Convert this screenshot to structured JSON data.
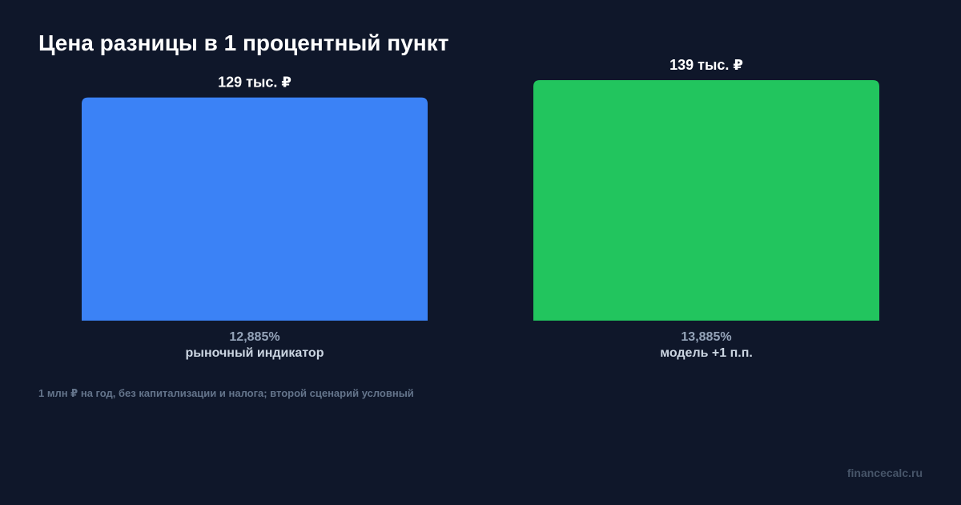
{
  "chart_data": {
    "type": "bar",
    "title": "Цена разницы в 1 процентный пункт",
    "categories": [
      "рыночный индикатор",
      "модель +1 п.п."
    ],
    "rates": [
      "12,885%",
      "13,885%"
    ],
    "values": [
      129,
      139
    ],
    "value_labels": [
      "129 тыс. ₽",
      "139 тыс. ₽"
    ],
    "unit": "тыс. ₽",
    "colors": [
      "#3b82f6",
      "#22c55e"
    ],
    "ylim": [
      0,
      139
    ],
    "grid": false,
    "legend": "none"
  },
  "footnote": "1 млн ₽ на год, без капитализации и налога; второй сценарий условный",
  "watermark": "financecalc.ru"
}
